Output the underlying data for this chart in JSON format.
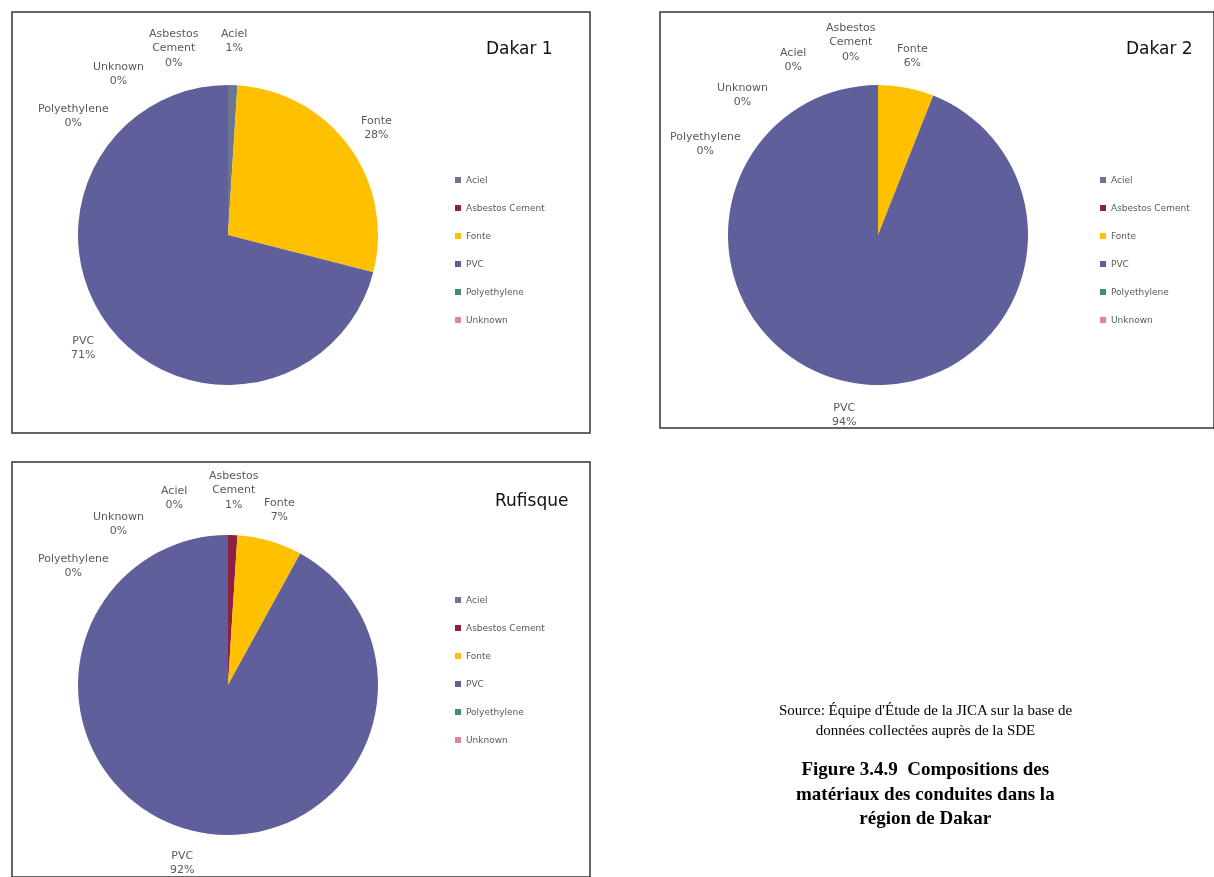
{
  "chart_data": [
    {
      "type": "pie",
      "title": "Dakar 1",
      "categories": [
        "Aciel",
        "Asbestos Cement",
        "Fonte",
        "PVC",
        "Polyethylene",
        "Unknown"
      ],
      "values": [
        1,
        0,
        28,
        71,
        0,
        0
      ],
      "value_labels": [
        "1%",
        "0%",
        "28%",
        "71%",
        "0%",
        "0%"
      ],
      "colors": [
        "#6a7591",
        "#8b2040",
        "#ffc000",
        "#5f5f9c",
        "#3f8f6f",
        "#e0849a"
      ],
      "legend": "right"
    },
    {
      "type": "pie",
      "title": "Dakar 2",
      "categories": [
        "Aciel",
        "Asbestos Cement",
        "Fonte",
        "PVC",
        "Polyethylene",
        "Unknown"
      ],
      "values": [
        0,
        0,
        6,
        94,
        0,
        0
      ],
      "value_labels": [
        "0%",
        "0%",
        "6%",
        "94%",
        "0%",
        "0%"
      ],
      "colors": [
        "#6a7591",
        "#8b2040",
        "#ffc000",
        "#5f5f9c",
        "#3f8f6f",
        "#e0849a"
      ],
      "legend": "right"
    },
    {
      "type": "pie",
      "title": "Rufisque",
      "categories": [
        "Aciel",
        "Asbestos Cement",
        "Fonte",
        "PVC",
        "Polyethylene",
        "Unknown"
      ],
      "values": [
        0,
        1,
        7,
        92,
        0,
        0
      ],
      "value_labels": [
        "0%",
        "1%",
        "7%",
        "92%",
        "0%",
        "0%"
      ],
      "colors": [
        "#6a7591",
        "#8b2040",
        "#ffc000",
        "#5f5f9c",
        "#3f8f6f",
        "#e0849a"
      ],
      "legend": "right",
      "annotations": [
        "Source: Équipe d'Étude de la JICA sur la base de données collectées auprès de la SDE",
        "Figure 3.4.9  Compositions des matériaux des conduites dans la région de Dakar"
      ]
    }
  ]
}
